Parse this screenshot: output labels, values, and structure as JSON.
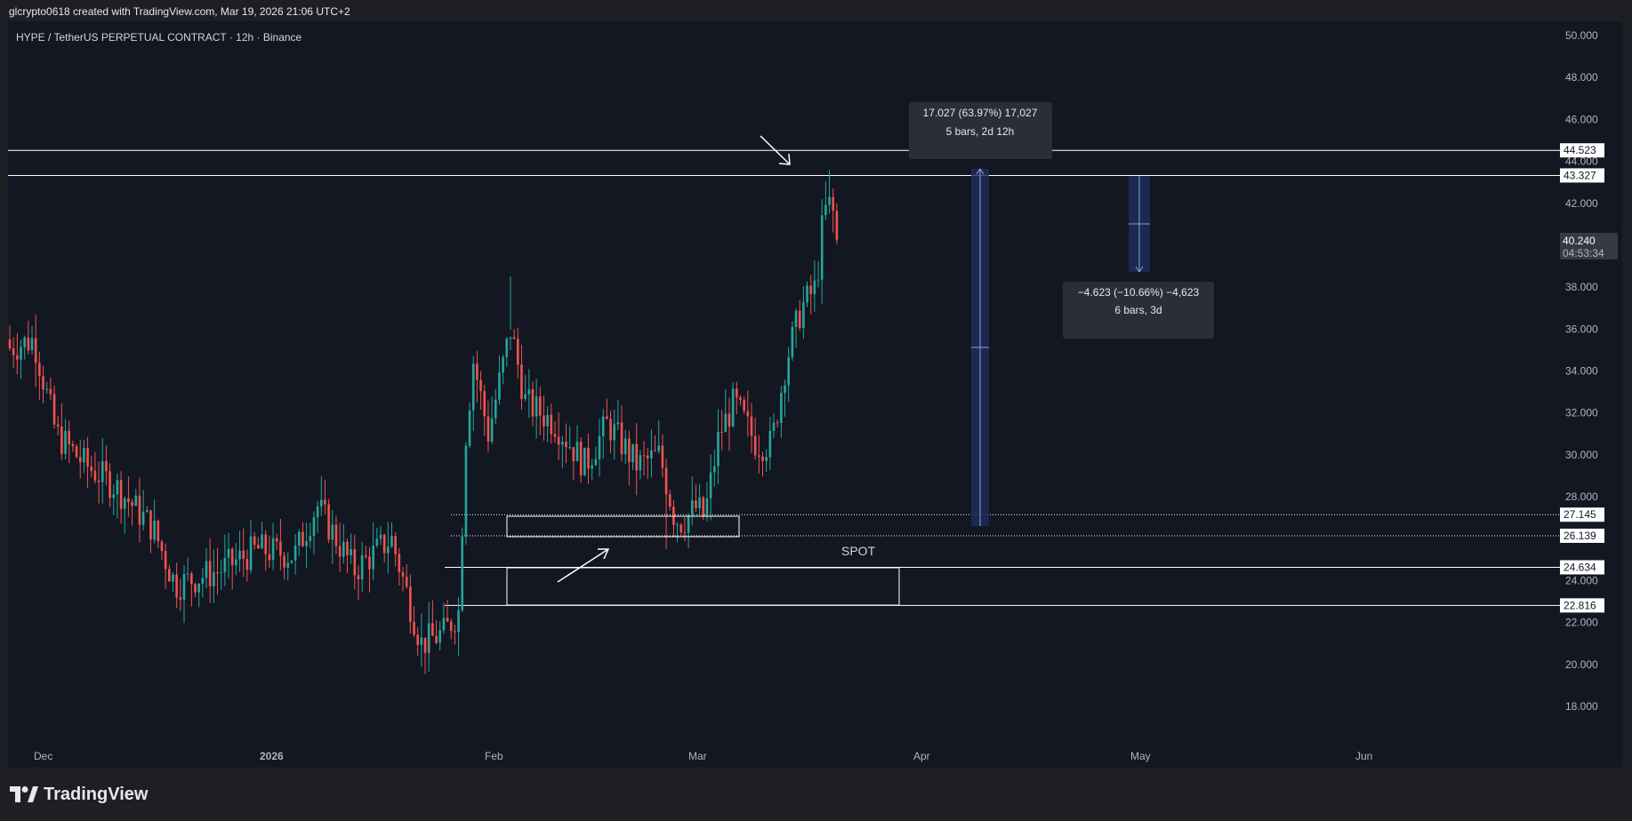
{
  "header": {
    "attribution": "glcrypto0618 created with TradingView.com, Mar 19, 2026 21:06 UTC+2",
    "symbol_title": "HYPE / TetherUS PERPETUAL CONTRACT · 12h · Binance"
  },
  "footer": {
    "brand": "TradingView"
  },
  "colors": {
    "background": "#131722",
    "frame": "#1e1f24",
    "up": "#26a69a",
    "down": "#ef5350",
    "text": "#b2b5be",
    "line": "#ffffff",
    "measure_fill": "#1e2d5c"
  },
  "chart_data": {
    "type": "candlestick",
    "title": "HYPE / TetherUS PERPETUAL CONTRACT · 12h · Binance",
    "ylim": [
      16,
      51
    ],
    "yticks": [
      "50.000",
      "48.000",
      "46.000",
      "44.000",
      "42.000",
      "40.000",
      "38.000",
      "36.000",
      "34.000",
      "32.000",
      "30.000",
      "28.000",
      "26.000",
      "24.000",
      "22.000",
      "20.000",
      "18.000"
    ],
    "xticks": [
      "Dec",
      "2026",
      "Feb",
      "Mar",
      "Apr",
      "May",
      "Jun"
    ],
    "last_price": {
      "value": "40.240",
      "countdown": "04:53:34"
    },
    "levels": [
      {
        "value": 44.523,
        "label": "44.523",
        "style": "solid"
      },
      {
        "value": 43.327,
        "label": "43.327",
        "style": "solid"
      },
      {
        "value": 27.145,
        "label": "27.145",
        "style": "dotted"
      },
      {
        "value": 26.139,
        "label": "26.139",
        "style": "dotted"
      },
      {
        "value": 24.634,
        "label": "24.634",
        "style": "solid"
      },
      {
        "value": 22.816,
        "label": "22.816",
        "style": "solid"
      }
    ],
    "annotations": {
      "spot_label": "SPOT",
      "measure_up": {
        "line1": "17.027 (63.97%) 17,027",
        "line2": "5 bars, 2d 12h"
      },
      "measure_down": {
        "line1": "−4.623 (−10.66%) −4,623",
        "line2": "6 bars, 3d"
      }
    },
    "price_path": [
      {
        "date": "Nov 27",
        "price": 34.5
      },
      {
        "date": "Dec 1",
        "price": 35.5
      },
      {
        "date": "Dec 4",
        "price": 31.0
      },
      {
        "date": "Dec 8",
        "price": 29.5
      },
      {
        "date": "Dec 12",
        "price": 28.5
      },
      {
        "date": "Dec 17",
        "price": 26.5
      },
      {
        "date": "Dec 20",
        "price": 23.8
      },
      {
        "date": "Dec 26",
        "price": 24.5
      },
      {
        "date": "Dec 31",
        "price": 25.5
      },
      {
        "date": "Jan 5",
        "price": 25.2
      },
      {
        "date": "Jan 8",
        "price": 27.6
      },
      {
        "date": "Jan 13",
        "price": 24.5
      },
      {
        "date": "Jan 18",
        "price": 26.0
      },
      {
        "date": "Jan 22",
        "price": 21.0
      },
      {
        "date": "Jan 25",
        "price": 21.5
      },
      {
        "date": "Jan 27",
        "price": 22.5
      },
      {
        "date": "Jan 28",
        "price": 31.0
      },
      {
        "date": "Jan 29",
        "price": 34.5
      },
      {
        "date": "Jan 31",
        "price": 31.0
      },
      {
        "date": "Feb 3",
        "price": 36.0
      },
      {
        "date": "Feb 5",
        "price": 32.5
      },
      {
        "date": "Feb 9",
        "price": 31.5
      },
      {
        "date": "Feb 13",
        "price": 29.5
      },
      {
        "date": "Feb 16",
        "price": 31.5
      },
      {
        "date": "Feb 20",
        "price": 29.5
      },
      {
        "date": "Feb 23",
        "price": 30.0
      },
      {
        "date": "Feb 25",
        "price": 27.0
      },
      {
        "date": "Feb 26",
        "price": 26.8
      },
      {
        "date": "Feb 28",
        "price": 27.5
      },
      {
        "date": "Mar 1",
        "price": 27.0
      },
      {
        "date": "Mar 3",
        "price": 31.0
      },
      {
        "date": "Mar 5",
        "price": 32.5
      },
      {
        "date": "Mar 8",
        "price": 30.5
      },
      {
        "date": "Mar 10",
        "price": 30.5
      },
      {
        "date": "Mar 12",
        "price": 34.5
      },
      {
        "date": "Mar 14",
        "price": 37.0
      },
      {
        "date": "Mar 16",
        "price": 38.0
      },
      {
        "date": "Mar 17",
        "price": 41.5
      },
      {
        "date": "Mar 18",
        "price": 42.0
      },
      {
        "date": "Mar 19",
        "price": 40.24
      }
    ],
    "extremes": [
      {
        "date": "Jan 23",
        "price": 20.5
      },
      {
        "date": "Feb 3",
        "price": 38.5
      },
      {
        "date": "Feb 24",
        "price": 25.5
      },
      {
        "date": "Mar 18",
        "price": 43.6
      }
    ]
  }
}
